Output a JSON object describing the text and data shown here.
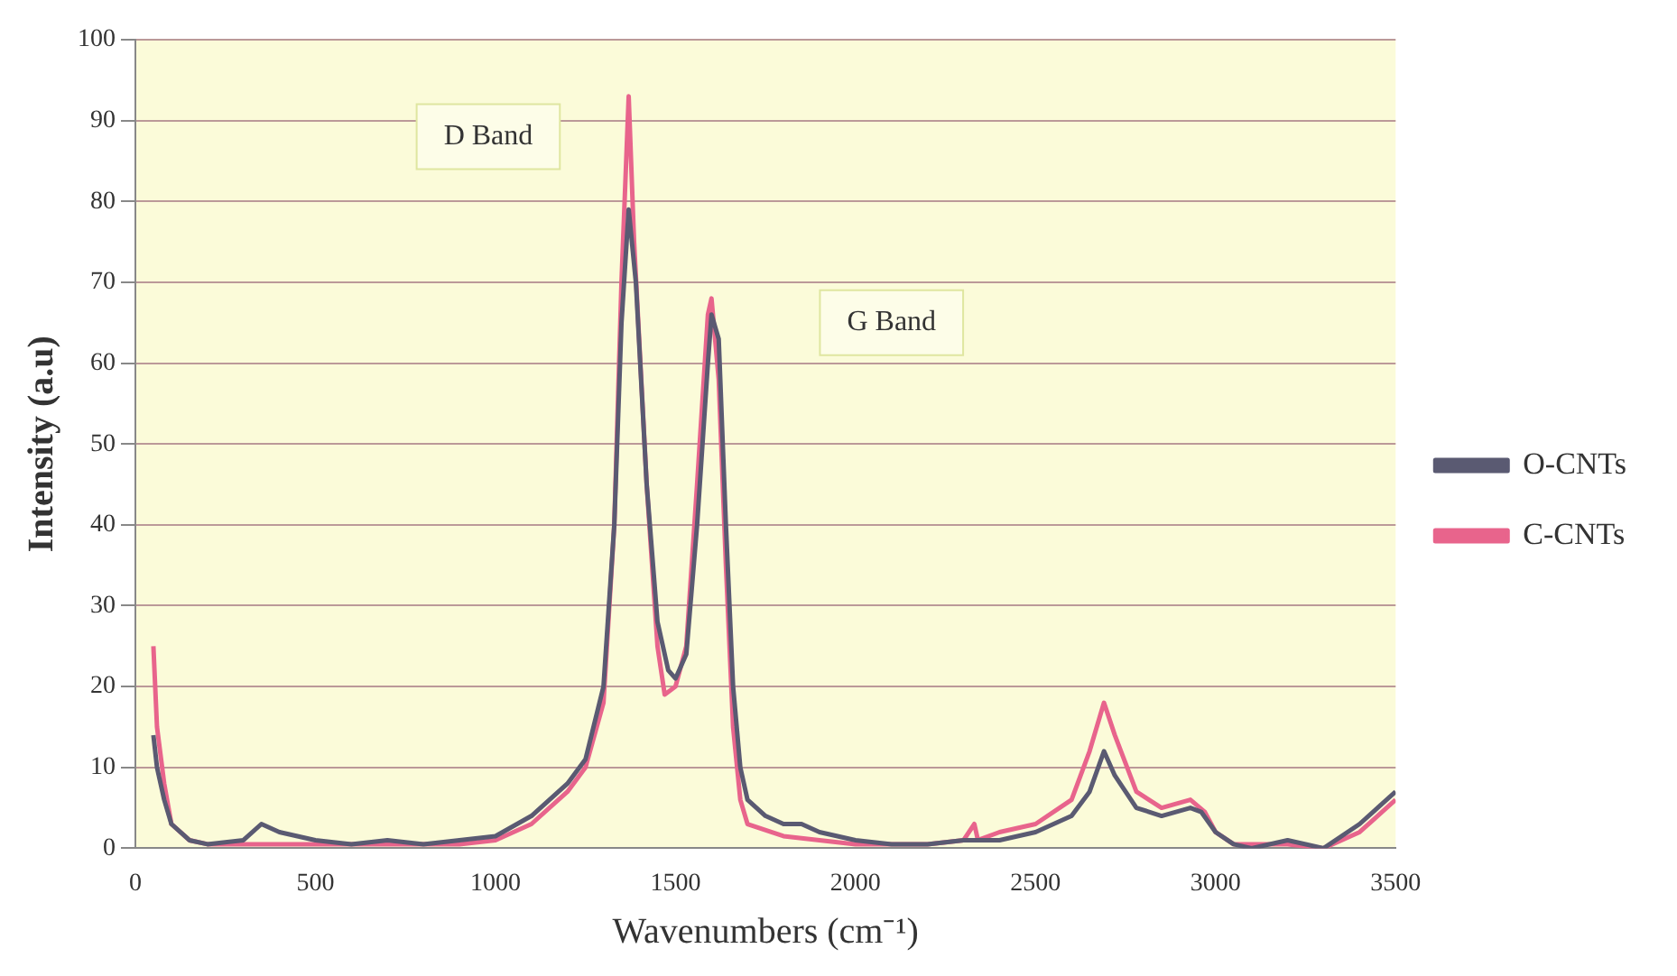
{
  "chart_data": {
    "type": "line",
    "xlabel": "Wavenumbers (cm⁻¹)",
    "ylabel": "Intensity (a.u)",
    "xlim": [
      0,
      3500
    ],
    "xticks": [
      0,
      500,
      1000,
      1500,
      2000,
      2500,
      3000,
      3500
    ],
    "ylim": [
      0,
      100
    ],
    "yticks": [
      0,
      10,
      20,
      30,
      40,
      50,
      60,
      70,
      80,
      90,
      100
    ],
    "grid": "y",
    "legend": "right",
    "marker": "none",
    "line_style": "solid",
    "annotations": [
      "D Band",
      "G Band"
    ],
    "series": [
      {
        "name": "O-CNTs",
        "color": "#5a5a72",
        "x": [
          50,
          60,
          80,
          100,
          150,
          200,
          300,
          350,
          400,
          500,
          600,
          700,
          800,
          900,
          1000,
          1100,
          1200,
          1250,
          1300,
          1330,
          1350,
          1370,
          1390,
          1420,
          1450,
          1480,
          1500,
          1530,
          1560,
          1590,
          1600,
          1620,
          1640,
          1660,
          1680,
          1700,
          1750,
          1800,
          1850,
          1900,
          2000,
          2100,
          2200,
          2300,
          2400,
          2500,
          2600,
          2650,
          2690,
          2720,
          2780,
          2850,
          2930,
          2960,
          3000,
          3050,
          3100,
          3200,
          3300,
          3400,
          3500
        ],
        "values": [
          14,
          10,
          6,
          3,
          1,
          0.5,
          1,
          3,
          2,
          1,
          0.5,
          1,
          0.5,
          1,
          1.5,
          4,
          8,
          11,
          20,
          40,
          65,
          79,
          70,
          45,
          28,
          22,
          21,
          24,
          40,
          60,
          66,
          63,
          40,
          20,
          10,
          6,
          4,
          3,
          3,
          2,
          1,
          0.5,
          0.5,
          1,
          1,
          2,
          4,
          7,
          12,
          9,
          5,
          4,
          5,
          4.5,
          2,
          0.5,
          0,
          1,
          0,
          3,
          7
        ]
      },
      {
        "name": "C-CNTs",
        "color": "#e8648c",
        "x": [
          50,
          60,
          80,
          100,
          150,
          200,
          300,
          400,
          500,
          600,
          700,
          800,
          900,
          1000,
          1100,
          1200,
          1250,
          1300,
          1330,
          1350,
          1370,
          1385,
          1420,
          1450,
          1470,
          1500,
          1530,
          1560,
          1590,
          1600,
          1620,
          1640,
          1660,
          1680,
          1700,
          1800,
          1900,
          2000,
          2100,
          2200,
          2300,
          2330,
          2340,
          2400,
          2500,
          2600,
          2650,
          2690,
          2720,
          2780,
          2850,
          2930,
          2970,
          3000,
          3050,
          3200,
          3300,
          3400,
          3500
        ],
        "values": [
          25,
          15,
          8,
          3,
          1,
          0.5,
          0.5,
          0.5,
          0.5,
          0.5,
          0.5,
          0.5,
          0.5,
          1,
          3,
          7,
          10,
          18,
          40,
          70,
          93,
          75,
          45,
          25,
          19,
          20,
          25,
          45,
          66,
          68,
          58,
          35,
          15,
          6,
          3,
          1.5,
          1,
          0.5,
          0.5,
          0.5,
          1,
          3,
          1,
          2,
          3,
          6,
          12,
          18,
          14,
          7,
          5,
          6,
          4.5,
          2,
          0.5,
          0.5,
          0,
          2,
          6
        ]
      }
    ]
  }
}
